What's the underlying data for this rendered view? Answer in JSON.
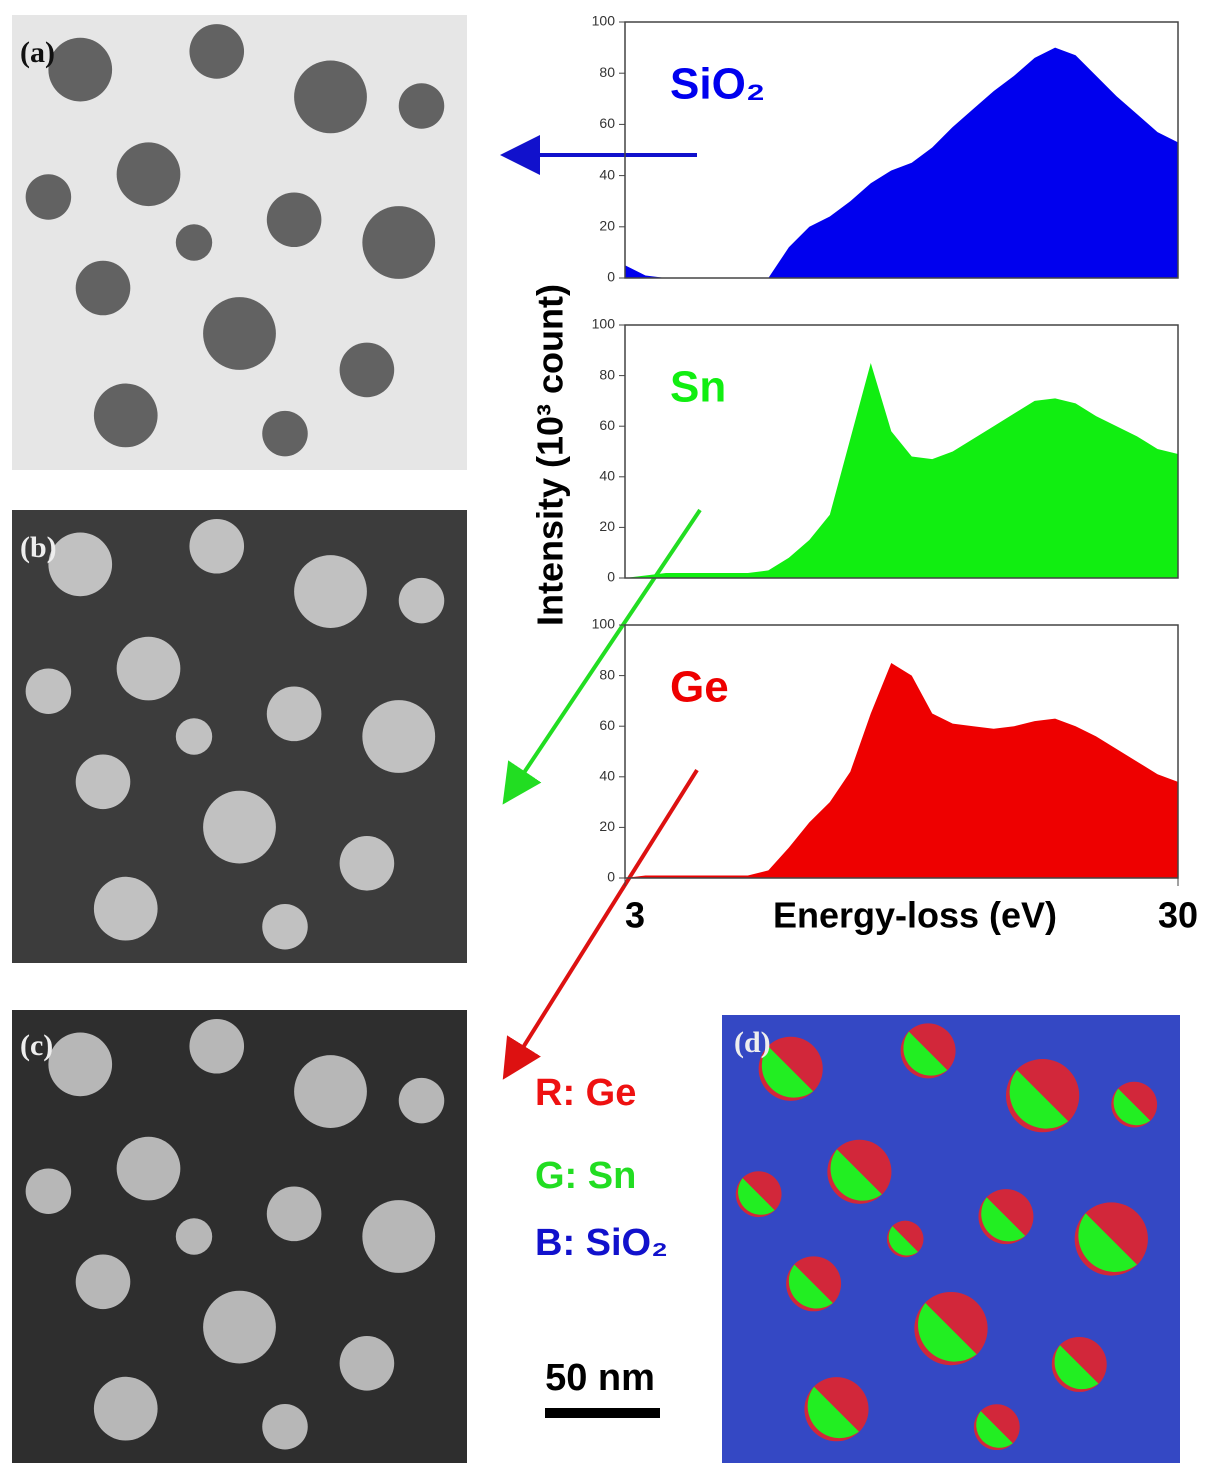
{
  "panels": [
    {
      "label": "(a)"
    },
    {
      "label": "(b)"
    },
    {
      "label": "(c)"
    },
    {
      "label": "(d)"
    }
  ],
  "rgb_legend": [
    {
      "text": "R: Ge",
      "color": "#ee1111"
    },
    {
      "text": "G: Sn",
      "color": "#22dd22"
    },
    {
      "text": "B: SiO₂",
      "color": "#1111cc"
    }
  ],
  "scale_bar": "50 nm",
  "chart_data": [
    {
      "type": "area",
      "xlim": [
        3,
        30
      ],
      "ylim": [
        0,
        100
      ],
      "yticks": [
        0,
        20,
        40,
        60,
        80,
        100
      ],
      "x": [
        3,
        4,
        5,
        6,
        7,
        8,
        9,
        10,
        11,
        12,
        13,
        14,
        15,
        16,
        17,
        18,
        19,
        20,
        21,
        22,
        23,
        24,
        25,
        26,
        27,
        28,
        29,
        30
      ],
      "series": [
        {
          "name": "SiO₂",
          "color": "#0000ee",
          "values": [
            5,
            1,
            0,
            0,
            0,
            0,
            0,
            0,
            12,
            20,
            24,
            30,
            37,
            42,
            45,
            51,
            59,
            66,
            73,
            79,
            86,
            90,
            87,
            79,
            71,
            64,
            57,
            53
          ]
        }
      ]
    },
    {
      "type": "area",
      "xlim": [
        3,
        30
      ],
      "ylim": [
        0,
        100
      ],
      "yticks": [
        0,
        20,
        40,
        60,
        80,
        100
      ],
      "ylabel": "Intensity (10³ count)",
      "x": [
        3,
        4,
        5,
        6,
        7,
        8,
        9,
        10,
        11,
        12,
        13,
        14,
        15,
        16,
        17,
        18,
        19,
        20,
        21,
        22,
        23,
        24,
        25,
        26,
        27,
        28,
        29,
        30
      ],
      "series": [
        {
          "name": "Sn",
          "color": "#11ee11",
          "values": [
            0,
            1,
            2,
            2,
            2,
            2,
            2,
            3,
            8,
            15,
            25,
            55,
            85,
            58,
            48,
            47,
            50,
            55,
            60,
            65,
            70,
            71,
            69,
            64,
            60,
            56,
            51,
            49
          ]
        }
      ]
    },
    {
      "type": "area",
      "xlim": [
        3,
        30
      ],
      "ylim": [
        0,
        100
      ],
      "yticks": [
        0,
        20,
        40,
        60,
        80,
        100
      ],
      "xticks": [
        3,
        30
      ],
      "xlabel": "Energy-loss (eV)",
      "x": [
        3,
        4,
        5,
        6,
        7,
        8,
        9,
        10,
        11,
        12,
        13,
        14,
        15,
        16,
        17,
        18,
        19,
        20,
        21,
        22,
        23,
        24,
        25,
        26,
        27,
        28,
        29,
        30
      ],
      "series": [
        {
          "name": "Ge",
          "color": "#ee0000",
          "values": [
            0,
            1,
            1,
            1,
            1,
            1,
            1,
            3,
            12,
            22,
            30,
            42,
            65,
            85,
            80,
            65,
            61,
            60,
            59,
            60,
            62,
            63,
            60,
            56,
            51,
            46,
            41,
            38
          ]
        }
      ]
    }
  ]
}
